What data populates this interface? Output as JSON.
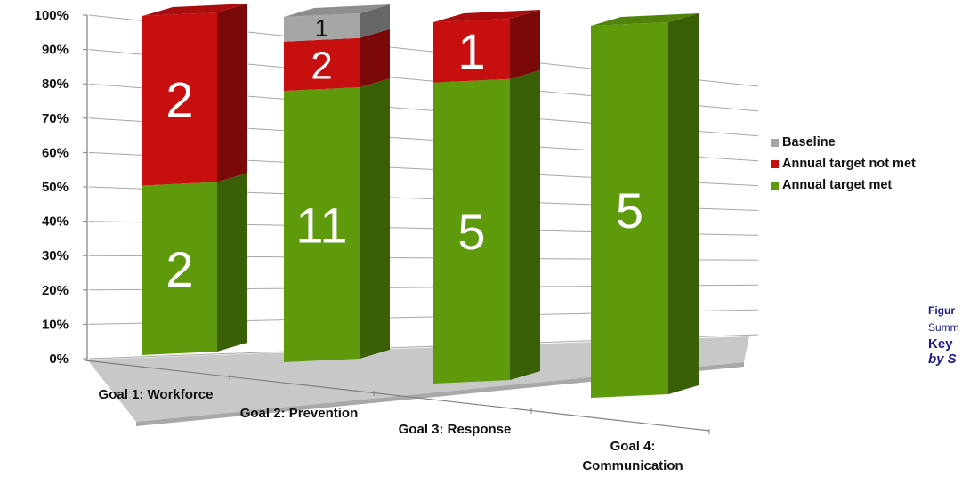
{
  "chart_data": {
    "type": "bar",
    "stacked": true,
    "percent_stacked": true,
    "three_d": true,
    "categories": [
      "Goal 1: Workforce",
      "Goal 2: Prevention",
      "Goal 3: Response",
      "Goal 4: Communication"
    ],
    "series": [
      {
        "name": "Annual target met",
        "values": [
          2,
          11,
          5,
          5
        ],
        "color": "#5e9a0c"
      },
      {
        "name": "Annual target not met",
        "values": [
          2,
          2,
          1,
          0
        ],
        "color": "#c80f0f"
      },
      {
        "name": "Baseline",
        "values": [
          0,
          1,
          0,
          0
        ],
        "color": "#a6a6a6"
      }
    ],
    "yticks": [
      "0%",
      "10%",
      "20%",
      "30%",
      "40%",
      "50%",
      "60%",
      "70%",
      "80%",
      "90%",
      "100%"
    ],
    "ylim": [
      0,
      100
    ],
    "grid": true,
    "legend": "right"
  },
  "legend": {
    "items": [
      {
        "label": "Baseline",
        "color": "#a6a6a6"
      },
      {
        "label": "Annual target not met",
        "color": "#c80f0f"
      },
      {
        "label": "Annual target met",
        "color": "#5e9a0c"
      }
    ]
  },
  "caption": {
    "line1": "Figur",
    "line2": "Summ",
    "line3": "Key",
    "line4": "by S"
  }
}
